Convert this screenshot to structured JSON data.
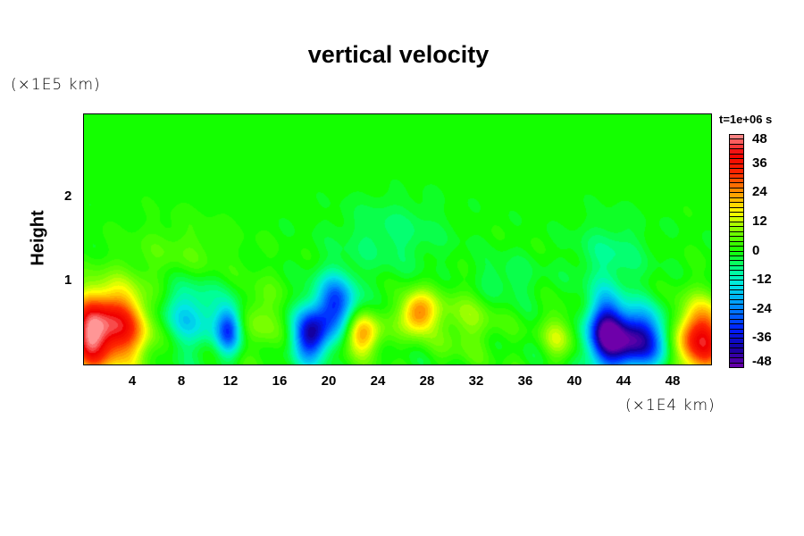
{
  "chart_data": {
    "type": "heatmap",
    "title": "vertical velocity",
    "xlabel": "",
    "ylabel": "Height",
    "x_unit": "(×1E4 km)",
    "y_unit": "(×1E5 km)",
    "xlim": [
      0,
      51.2
    ],
    "ylim": [
      0,
      3
    ],
    "xticks": [
      4,
      8,
      12,
      16,
      20,
      24,
      28,
      32,
      36,
      40,
      44,
      48
    ],
    "yticks": [
      1,
      2
    ],
    "colorbar": {
      "title": "t=1e+06 s",
      "range": [
        -48,
        48
      ],
      "step": 2,
      "ticks": [
        48,
        36,
        24,
        12,
        0,
        -12,
        -24,
        -36,
        -48
      ]
    },
    "features": [
      {
        "x": 2.2,
        "y": 0.45,
        "value": 42,
        "sx": 2.2,
        "sy": 0.33
      },
      {
        "x": 0.3,
        "y": 0.3,
        "value": 20,
        "sx": 1.0,
        "sy": 0.3
      },
      {
        "x": 8.5,
        "y": 0.6,
        "value": -16,
        "sx": 2.0,
        "sy": 0.3
      },
      {
        "x": 11.8,
        "y": 0.42,
        "value": -26,
        "sx": 0.7,
        "sy": 0.2
      },
      {
        "x": 18.5,
        "y": 0.35,
        "value": -38,
        "sx": 1.0,
        "sy": 0.22
      },
      {
        "x": 20.5,
        "y": 0.72,
        "value": -30,
        "sx": 1.2,
        "sy": 0.25
      },
      {
        "x": 22.7,
        "y": 0.37,
        "value": 24,
        "sx": 1.1,
        "sy": 0.18
      },
      {
        "x": 27.2,
        "y": 0.62,
        "value": 26,
        "sx": 1.0,
        "sy": 0.18
      },
      {
        "x": 31.0,
        "y": 0.55,
        "value": 9,
        "sx": 2.0,
        "sy": 0.3
      },
      {
        "x": 14.5,
        "y": 0.55,
        "value": 9,
        "sx": 1.0,
        "sy": 0.3
      },
      {
        "x": 38.8,
        "y": 0.35,
        "value": 12,
        "sx": 1.0,
        "sy": 0.2
      },
      {
        "x": 42.5,
        "y": 0.42,
        "value": -30,
        "sx": 1.0,
        "sy": 0.3
      },
      {
        "x": 44.8,
        "y": 0.3,
        "value": -44,
        "sx": 2.0,
        "sy": 0.25
      },
      {
        "x": 50.3,
        "y": 0.3,
        "value": 40,
        "sx": 1.6,
        "sy": 0.3
      },
      {
        "x": 25.0,
        "y": 1.55,
        "value": -6,
        "sx": 3.0,
        "sy": 0.3
      },
      {
        "x": 34.0,
        "y": 1.0,
        "value": -6,
        "sx": 2.0,
        "sy": 0.2
      },
      {
        "x": 8.0,
        "y": 1.3,
        "value": 5,
        "sx": 3.0,
        "sy": 0.3
      },
      {
        "x": 43.0,
        "y": 1.3,
        "value": -7,
        "sx": 2.0,
        "sy": 0.3
      }
    ]
  }
}
